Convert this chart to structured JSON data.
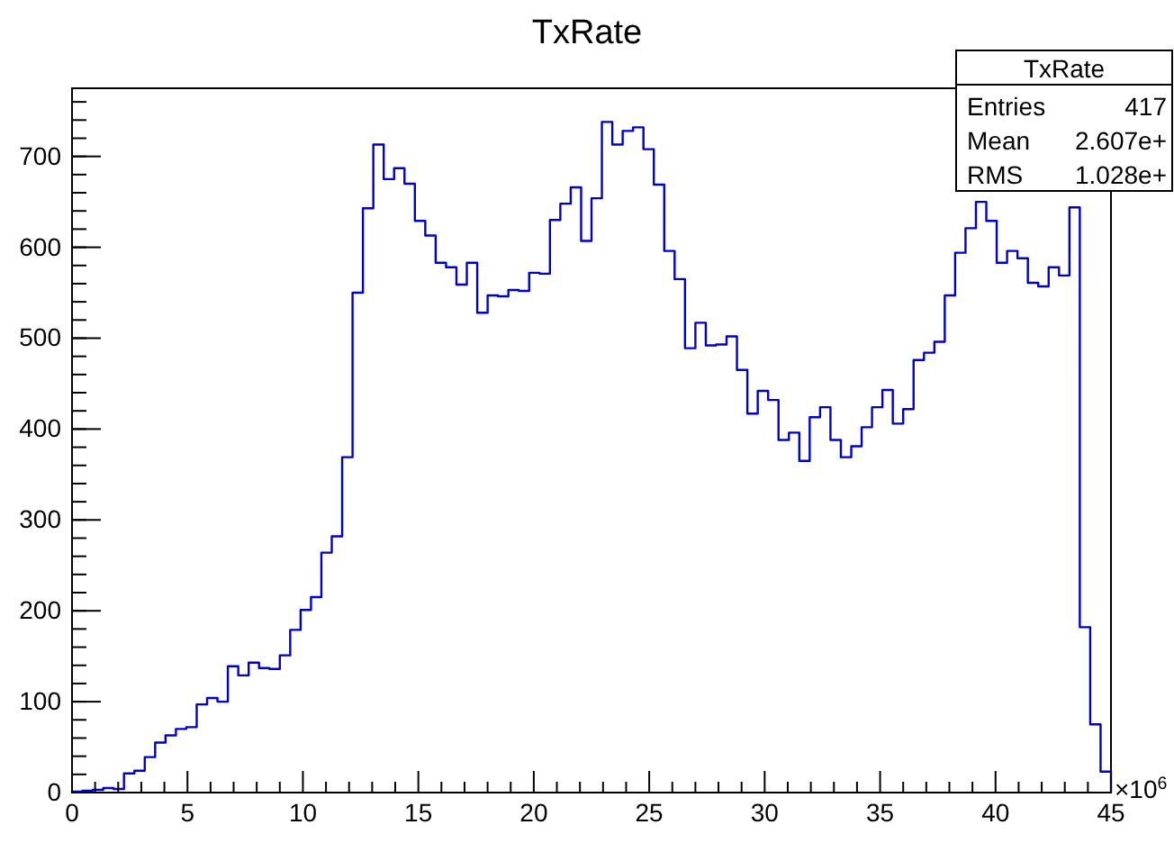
{
  "chart_data": {
    "type": "histogram",
    "title": "TxRate",
    "xlabel": "×10$^{6}$",
    "color": "#0000cc",
    "bins": [
      0,
      0.45,
      0.9,
      1.35,
      1.8,
      2.25,
      2.7,
      3.15,
      3.6,
      4.05,
      4.5,
      4.95,
      5.4,
      5.85,
      6.3,
      6.75,
      7.2,
      7.65,
      8.1,
      8.55,
      9,
      9.45,
      9.9,
      10.35,
      10.8,
      11.25,
      11.7,
      12.15,
      12.6,
      13.05,
      13.5,
      13.95,
      14.4,
      14.85,
      15.3,
      15.75,
      16.2,
      16.65,
      17.1,
      17.55,
      18,
      18.45,
      18.9,
      19.35,
      19.8,
      20.25,
      20.7,
      21.15,
      21.6,
      22.05,
      22.5,
      22.95,
      23.4,
      23.85,
      24.3,
      24.75,
      25.2,
      25.65,
      26.1,
      26.55,
      27,
      27.45,
      27.9,
      28.35,
      28.8,
      29.25,
      29.7,
      30.15,
      30.6,
      31.05,
      31.5,
      31.95,
      32.4,
      32.85,
      33.3,
      33.75,
      34.2,
      34.65,
      35.1,
      35.55,
      36,
      36.45,
      36.9,
      37.35,
      37.8,
      38.25,
      38.7,
      39.15,
      39.6,
      40.05,
      40.5,
      40.95,
      41.4,
      41.85,
      42.3,
      42.75,
      43.2,
      43.65,
      44.1,
      44.55,
      45
    ],
    "values": [
      1,
      2,
      3,
      5,
      4,
      21,
      24,
      39,
      55,
      63,
      70,
      72,
      97,
      104,
      100,
      139,
      129,
      143,
      137,
      136,
      151,
      179,
      201,
      215,
      264,
      282,
      369,
      550,
      643,
      713,
      675,
      687,
      670,
      629,
      613,
      583,
      578,
      559,
      583,
      528,
      547,
      546,
      553,
      552,
      572,
      571,
      630,
      648,
      666,
      607,
      654,
      738,
      713,
      728,
      732,
      708,
      669,
      596,
      565,
      489,
      517,
      492,
      493,
      502,
      465,
      417,
      442,
      432,
      388,
      396,
      365,
      413,
      424,
      388,
      369,
      381,
      402,
      424,
      443,
      406,
      422,
      476,
      484,
      496,
      547,
      594,
      621,
      650,
      629,
      583,
      596,
      588,
      561,
      557,
      578,
      569,
      644,
      182,
      75,
      23
    ],
    "xlim": [
      0,
      45
    ],
    "ylim": [
      0,
      775
    ],
    "xticks": [
      0,
      5,
      10,
      15,
      20,
      25,
      30,
      35,
      40,
      45
    ],
    "yticks": [
      0,
      100,
      200,
      300,
      400,
      500,
      600,
      700
    ],
    "annotations": [
      "TxRate",
      "Entries 417",
      "Mean 2.607e+",
      "RMS 1.028e+"
    ]
  }
}
